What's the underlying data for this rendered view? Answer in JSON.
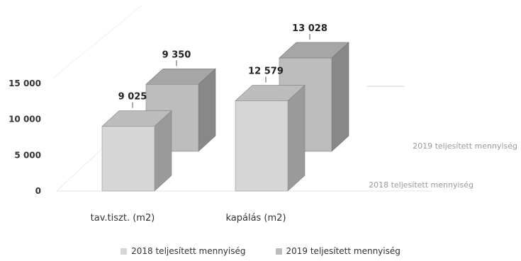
{
  "chart_data": {
    "type": "bar",
    "categories": [
      "tav.tiszt. (m2)",
      "kapálás (m2)"
    ],
    "series": [
      {
        "name": "2018 teljesített mennyiség",
        "values": [
          9025,
          12579
        ],
        "color": "#d6d6d6",
        "value_labels": [
          "9 025",
          "12 579"
        ]
      },
      {
        "name": "2019 teljesített mennyiség",
        "values": [
          9350,
          13028
        ],
        "color": "#bdbdbd",
        "value_labels": [
          "9 350",
          "13 028"
        ]
      }
    ],
    "y_ticks": [
      "0",
      "5 000",
      "10 000",
      "15 000"
    ],
    "ylim": [
      0,
      15000
    ],
    "depth_axis_labels": [
      "2018 teljesített mennyiség",
      "2019 teljesített mennyiség"
    ],
    "legend_position": "bottom",
    "grid": true,
    "three_d": true
  }
}
